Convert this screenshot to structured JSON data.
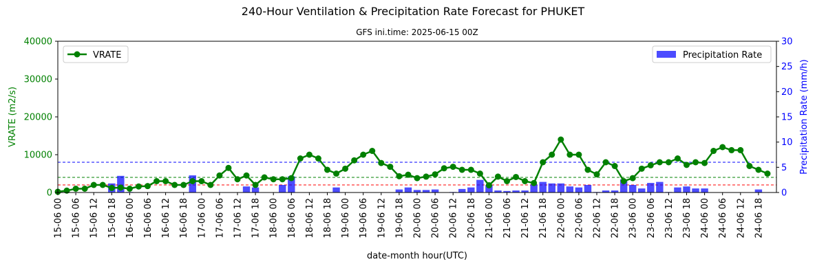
{
  "chart_data": {
    "type": "line+bar",
    "title": "240-Hour Ventilation & Precipitation Rate Forecast for PHUKET",
    "subtitle": "GFS ini.time: 2025-06-15 00Z",
    "xlabel": "date-month hour(UTC)",
    "ylabel_left": "VRATE (m2/s)",
    "ylabel_right": "Precipitation Rate (mm/h)",
    "ylim_left": [
      0,
      40000
    ],
    "ylim_right": [
      0,
      30
    ],
    "yticks_left": [
      "0",
      "10000",
      "20000",
      "30000",
      "40000"
    ],
    "yticks_right": [
      "0",
      "5",
      "10",
      "15",
      "20",
      "25",
      "30"
    ],
    "x_tick_labels": [
      "15-06 00",
      "15-06 06",
      "15-06 12",
      "15-06 18",
      "16-06 00",
      "16-06 06",
      "16-06 12",
      "16-06 18",
      "17-06 00",
      "17-06 06",
      "17-06 12",
      "17-06 18",
      "18-06 00",
      "18-06 06",
      "18-06 12",
      "18-06 18",
      "19-06 00",
      "19-06 06",
      "19-06 12",
      "19-06 18",
      "20-06 00",
      "20-06 06",
      "20-06 12",
      "20-06 18",
      "21-06 00",
      "21-06 06",
      "21-06 12",
      "21-06 18",
      "22-06 00",
      "22-06 06",
      "22-06 12",
      "22-06 18",
      "23-06 00",
      "23-06 06",
      "23-06 12",
      "23-06 18",
      "24-06 00",
      "24-06 06",
      "24-06 12",
      "24-06 18"
    ],
    "time_step_hours": 3,
    "series": [
      {
        "name": "VRATE",
        "axis": "left",
        "color": "#008000",
        "values": [
          200,
          500,
          1000,
          1000,
          2000,
          2000,
          1200,
          1300,
          1000,
          1600,
          1700,
          3000,
          3000,
          2000,
          2000,
          3000,
          3000,
          2000,
          4500,
          6500,
          3500,
          4500,
          2000,
          4000,
          3500,
          3500,
          3800,
          9000,
          10000,
          9000,
          6000,
          5000,
          6300,
          8500,
          10000,
          11000,
          7800,
          6800,
          4300,
          4700,
          3800,
          4200,
          4800,
          6400,
          6800,
          6000,
          6000,
          5000,
          1900,
          4200,
          3000,
          4100,
          3000,
          2500,
          8000,
          10000,
          14000,
          10000,
          10000,
          6000,
          4800,
          8000,
          7000,
          3000,
          3800,
          6300,
          7200,
          8000,
          8000,
          9000,
          7300,
          8000,
          7800,
          11000,
          12000,
          11200,
          11200,
          7000,
          6000,
          5000
        ]
      },
      {
        "name": "Precipitation Rate",
        "axis": "right",
        "color": "#0000ff",
        "values": [
          0,
          0,
          0,
          0,
          0,
          0,
          1.8,
          3.3,
          0.1,
          0,
          0,
          0,
          0,
          0,
          0,
          3.4,
          0,
          0,
          0,
          0,
          0,
          1.2,
          1.0,
          0,
          0,
          1.5,
          3.2,
          0,
          0,
          0,
          0,
          1.0,
          0,
          0,
          0,
          0,
          0,
          0,
          0.6,
          1.0,
          0.5,
          0.5,
          0.6,
          0,
          0.1,
          0.7,
          1.0,
          2.5,
          1.5,
          0.4,
          0.3,
          0.4,
          0.4,
          1.6,
          2.1,
          1.8,
          1.8,
          1.2,
          1.0,
          1.5,
          0.1,
          0.4,
          0.4,
          2.6,
          1.5,
          0.8,
          1.9,
          2.1,
          0.1,
          1.0,
          1.2,
          0.8,
          0.8,
          0,
          0,
          0,
          0,
          0,
          0.6,
          0
        ]
      }
    ],
    "reference_lines": [
      {
        "axis": "left",
        "value": 8000,
        "color": "#0000ff",
        "style": "dashed"
      },
      {
        "axis": "left",
        "value": 4000,
        "color": "#008000",
        "style": "dashed"
      },
      {
        "axis": "left",
        "value": 2000,
        "color": "#ff0000",
        "style": "dashed"
      }
    ],
    "legend_left": {
      "label": "VRATE",
      "placement": "top-left"
    },
    "legend_right": {
      "label": "Precipitation Rate",
      "placement": "top-right"
    },
    "grid": false
  }
}
